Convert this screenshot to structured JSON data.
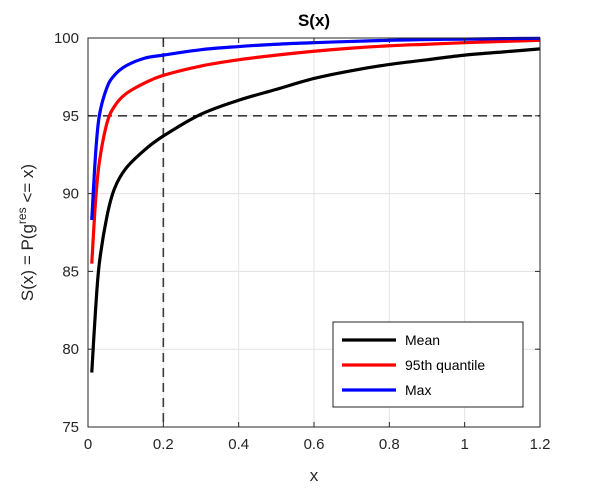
{
  "chart_data": {
    "type": "line",
    "title": "S(x)",
    "xlabel": "x",
    "ylabel_parts": {
      "prefix": "S(x) = P(g",
      "superscript": "res",
      "suffix": " <= x)"
    },
    "xlim": [
      0,
      1.2
    ],
    "ylim": [
      75,
      100
    ],
    "x_ticks": [
      0,
      0.2,
      0.4,
      0.6,
      0.8,
      1,
      1.2
    ],
    "x_tick_labels": [
      "0",
      "0.2",
      "0.4",
      "0.6",
      "0.8",
      "1",
      "1.2"
    ],
    "y_ticks": [
      75,
      80,
      85,
      90,
      95,
      100
    ],
    "y_tick_labels": [
      "75",
      "80",
      "85",
      "90",
      "95",
      "100"
    ],
    "grid": true,
    "legend_position": "bottom-right",
    "reference_lines": {
      "x": 0.2,
      "y": 95
    },
    "series": [
      {
        "name": "Mean",
        "color": "#000000",
        "x": [
          0.01,
          0.02,
          0.03,
          0.05,
          0.07,
          0.1,
          0.15,
          0.2,
          0.3,
          0.4,
          0.5,
          0.6,
          0.7,
          0.8,
          0.9,
          1.0,
          1.1,
          1.2
        ],
        "y": [
          78.5,
          82.5,
          85.5,
          88.5,
          90.3,
          91.6,
          92.8,
          93.7,
          95.1,
          96.0,
          96.7,
          97.4,
          97.9,
          98.3,
          98.6,
          98.9,
          99.1,
          99.3
        ]
      },
      {
        "name": "95th quantile",
        "color": "#ff0000",
        "x": [
          0.01,
          0.02,
          0.03,
          0.05,
          0.07,
          0.1,
          0.15,
          0.2,
          0.3,
          0.4,
          0.5,
          0.6,
          0.7,
          0.8,
          0.9,
          1.0,
          1.1,
          1.2
        ],
        "y": [
          85.5,
          89.5,
          92.0,
          94.5,
          95.6,
          96.4,
          97.1,
          97.6,
          98.2,
          98.6,
          98.9,
          99.15,
          99.35,
          99.5,
          99.6,
          99.7,
          99.78,
          99.85
        ]
      },
      {
        "name": "Max",
        "color": "#0000ff",
        "x": [
          0.01,
          0.02,
          0.03,
          0.05,
          0.07,
          0.1,
          0.15,
          0.2,
          0.3,
          0.4,
          0.5,
          0.6,
          0.7,
          0.8,
          0.9,
          1.0,
          1.1,
          1.2
        ],
        "y": [
          88.3,
          92.5,
          95.0,
          96.8,
          97.6,
          98.2,
          98.7,
          98.9,
          99.25,
          99.45,
          99.6,
          99.7,
          99.78,
          99.85,
          99.9,
          99.93,
          99.96,
          99.98
        ]
      }
    ]
  }
}
